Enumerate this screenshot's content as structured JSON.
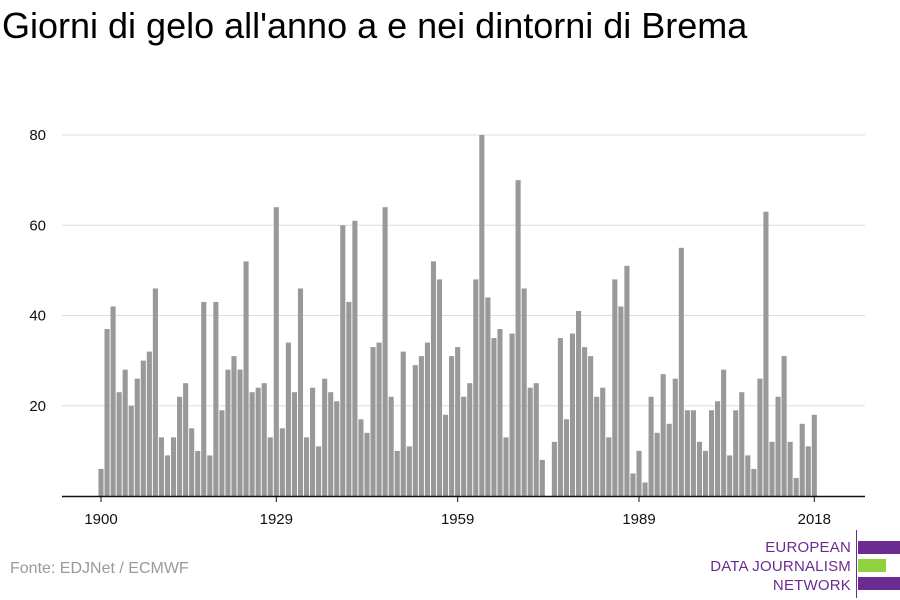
{
  "title": "Giorni di gelo all'anno a e nei dintorni di Brema",
  "source": "Fonte: EDJNet / ECMWF",
  "logo": {
    "lines": [
      "EUROPEAN",
      "DATA JOURNALISM",
      "NETWORK"
    ],
    "colors": {
      "purple": "#6b2c91",
      "green": "#8fd13f"
    }
  },
  "colors": {
    "bar": "#999999",
    "grid": "#dddddd",
    "axis": "#111111"
  },
  "chart_data": {
    "type": "bar",
    "title": "Giorni di gelo all'anno a e nei dintorni di Brema",
    "xlabel": "",
    "ylabel": "",
    "x_ticks": [
      "1900",
      "1929",
      "1959",
      "1989",
      "2018"
    ],
    "y_ticks": [
      20,
      40,
      60,
      80
    ],
    "ylim": [
      0,
      80
    ],
    "grid": true,
    "categories": [
      1900,
      1901,
      1902,
      1903,
      1904,
      1905,
      1906,
      1907,
      1908,
      1909,
      1910,
      1911,
      1912,
      1913,
      1914,
      1915,
      1916,
      1917,
      1918,
      1919,
      1920,
      1921,
      1922,
      1923,
      1924,
      1925,
      1926,
      1927,
      1928,
      1929,
      1930,
      1931,
      1932,
      1933,
      1934,
      1935,
      1936,
      1937,
      1938,
      1939,
      1940,
      1941,
      1942,
      1943,
      1944,
      1945,
      1946,
      1947,
      1948,
      1949,
      1950,
      1951,
      1952,
      1953,
      1954,
      1955,
      1956,
      1957,
      1958,
      1959,
      1960,
      1961,
      1962,
      1963,
      1964,
      1965,
      1966,
      1967,
      1968,
      1969,
      1970,
      1971,
      1972,
      1973,
      1974,
      1975,
      1976,
      1977,
      1978,
      1979,
      1980,
      1981,
      1982,
      1983,
      1984,
      1985,
      1986,
      1987,
      1988,
      1989,
      1990,
      1991,
      1992,
      1993,
      1994,
      1995,
      1996,
      1997,
      1998,
      1999,
      2000,
      2001,
      2002,
      2003,
      2004,
      2005,
      2006,
      2007,
      2008,
      2009,
      2010,
      2011,
      2012,
      2013,
      2014,
      2015,
      2016,
      2017,
      2018
    ],
    "values": [
      6,
      37,
      42,
      23,
      28,
      20,
      26,
      30,
      32,
      46,
      13,
      9,
      13,
      22,
      25,
      15,
      10,
      43,
      9,
      43,
      19,
      28,
      31,
      28,
      52,
      23,
      24,
      25,
      13,
      64,
      15,
      34,
      23,
      46,
      13,
      24,
      11,
      26,
      23,
      21,
      60,
      43,
      61,
      17,
      14,
      33,
      34,
      64,
      22,
      10,
      32,
      11,
      29,
      31,
      34,
      52,
      48,
      18,
      31,
      33,
      22,
      25,
      48,
      80,
      44,
      35,
      37,
      13,
      36,
      70,
      46,
      24,
      25,
      8,
      0,
      12,
      35,
      17,
      36,
      41,
      33,
      31,
      22,
      24,
      13,
      48,
      42,
      51,
      5,
      10,
      3,
      22,
      14,
      27,
      16,
      26,
      55,
      19,
      19,
      12,
      10,
      19,
      21,
      28,
      9,
      19,
      23,
      9,
      6,
      26,
      63,
      12,
      22,
      31,
      12,
      4,
      16,
      11,
      18
    ]
  }
}
